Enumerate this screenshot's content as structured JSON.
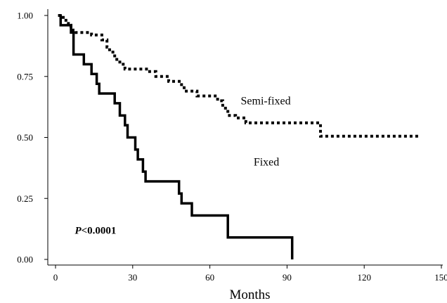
{
  "chart_data": {
    "type": "line",
    "xlabel": "Months",
    "ylabel": "",
    "xlim": [
      0,
      150
    ],
    "ylim": [
      0,
      1.0
    ],
    "x_ticks": [
      "0",
      "30",
      "60",
      "90",
      "120",
      "150"
    ],
    "y_ticks": [
      "0.00",
      "0.25",
      "0.50",
      "0.75",
      "1.00"
    ],
    "grid": false,
    "annotation": {
      "prefix": "P",
      "value": "<0.0001"
    },
    "series": [
      {
        "name": "Semi-fixed",
        "style": "dotted",
        "color": "#000000",
        "points": [
          [
            1,
            1.0
          ],
          [
            3,
            1.0
          ],
          [
            3,
            0.98
          ],
          [
            5,
            0.98
          ],
          [
            5,
            0.96
          ],
          [
            6,
            0.96
          ],
          [
            6,
            0.94
          ],
          [
            8,
            0.94
          ],
          [
            8,
            0.93
          ],
          [
            14,
            0.93
          ],
          [
            14,
            0.92
          ],
          [
            18,
            0.92
          ],
          [
            18,
            0.9
          ],
          [
            20,
            0.9
          ],
          [
            20,
            0.87
          ],
          [
            21,
            0.87
          ],
          [
            21,
            0.85
          ],
          [
            23,
            0.85
          ],
          [
            23,
            0.82
          ],
          [
            25,
            0.82
          ],
          [
            25,
            0.8
          ],
          [
            27,
            0.8
          ],
          [
            27,
            0.78
          ],
          [
            36,
            0.78
          ],
          [
            36,
            0.77
          ],
          [
            39,
            0.77
          ],
          [
            39,
            0.75
          ],
          [
            44,
            0.75
          ],
          [
            44,
            0.73
          ],
          [
            49,
            0.73
          ],
          [
            49,
            0.71
          ],
          [
            50,
            0.71
          ],
          [
            50,
            0.69
          ],
          [
            55,
            0.69
          ],
          [
            55,
            0.67
          ],
          [
            63,
            0.67
          ],
          [
            63,
            0.65
          ],
          [
            65,
            0.65
          ],
          [
            65,
            0.62
          ],
          [
            67,
            0.62
          ],
          [
            67,
            0.59
          ],
          [
            70,
            0.59
          ],
          [
            70,
            0.58
          ],
          [
            74,
            0.58
          ],
          [
            74,
            0.56
          ],
          [
            103,
            0.56
          ],
          [
            103,
            0.505
          ],
          [
            141,
            0.505
          ]
        ]
      },
      {
        "name": "Fixed",
        "style": "solid",
        "color": "#000000",
        "points": [
          [
            1,
            1.0
          ],
          [
            2,
            1.0
          ],
          [
            2,
            0.96
          ],
          [
            6,
            0.96
          ],
          [
            6,
            0.93
          ],
          [
            7,
            0.93
          ],
          [
            7,
            0.84
          ],
          [
            11,
            0.84
          ],
          [
            11,
            0.8
          ],
          [
            14,
            0.8
          ],
          [
            14,
            0.76
          ],
          [
            16,
            0.76
          ],
          [
            16,
            0.72
          ],
          [
            17,
            0.72
          ],
          [
            17,
            0.68
          ],
          [
            23,
            0.68
          ],
          [
            23,
            0.64
          ],
          [
            25,
            0.64
          ],
          [
            25,
            0.59
          ],
          [
            27,
            0.59
          ],
          [
            27,
            0.55
          ],
          [
            28,
            0.55
          ],
          [
            28,
            0.5
          ],
          [
            31,
            0.5
          ],
          [
            31,
            0.45
          ],
          [
            32,
            0.45
          ],
          [
            32,
            0.41
          ],
          [
            34,
            0.41
          ],
          [
            34,
            0.36
          ],
          [
            35,
            0.36
          ],
          [
            35,
            0.32
          ],
          [
            48,
            0.32
          ],
          [
            48,
            0.27
          ],
          [
            49,
            0.27
          ],
          [
            49,
            0.23
          ],
          [
            53,
            0.23
          ],
          [
            53,
            0.18
          ],
          [
            67,
            0.18
          ],
          [
            67,
            0.09
          ],
          [
            92,
            0.09
          ],
          [
            92,
            0.0
          ]
        ]
      }
    ],
    "series_labels": [
      {
        "text": "Semi-fixed",
        "x": 72,
        "y": 0.635
      },
      {
        "text": "Fixed",
        "x": 77,
        "y": 0.385
      }
    ]
  }
}
